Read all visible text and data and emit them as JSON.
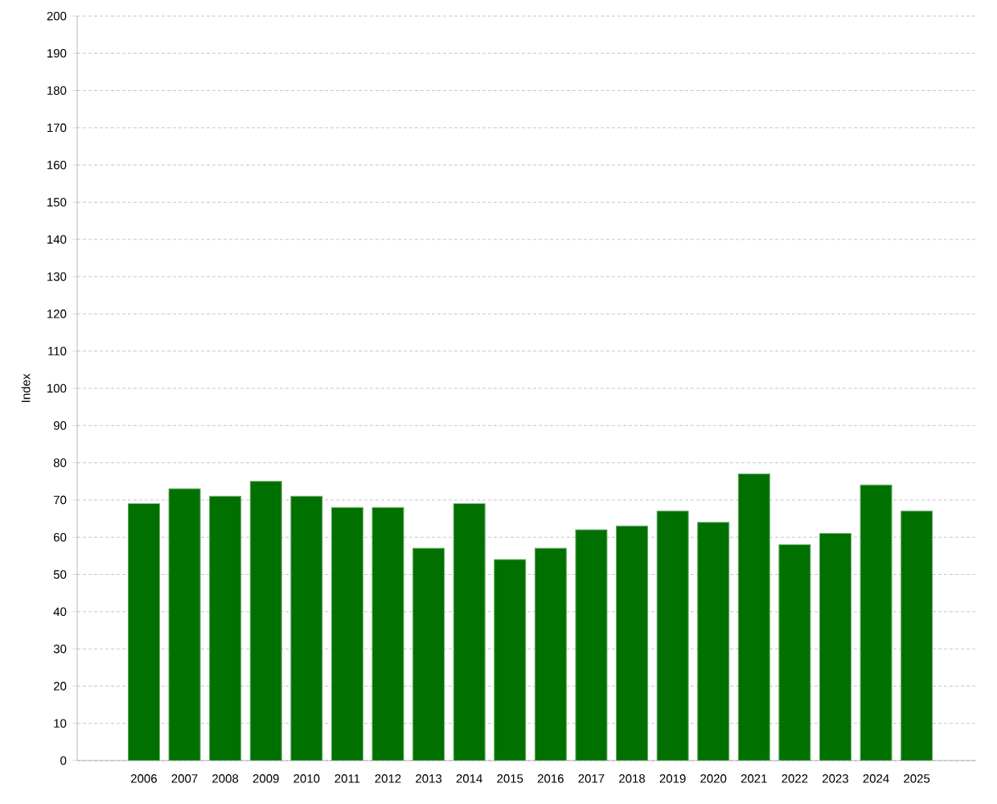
{
  "chart_data": {
    "type": "bar",
    "ylabel": "Index",
    "categories": [
      "2006",
      "2007",
      "2008",
      "2009",
      "2010",
      "2011",
      "2012",
      "2013",
      "2014",
      "2015",
      "2016",
      "2017",
      "2018",
      "2019",
      "2020",
      "2021",
      "2022",
      "2023",
      "2024",
      "2025"
    ],
    "values": [
      69,
      73,
      71,
      75,
      71,
      68,
      68,
      57,
      69,
      54,
      57,
      62,
      63,
      67,
      64,
      77,
      58,
      61,
      74,
      67
    ],
    "color": "#007000",
    "ylim": [
      0,
      200
    ],
    "yticks": [
      0,
      10,
      20,
      30,
      40,
      50,
      60,
      70,
      80,
      90,
      100,
      110,
      120,
      130,
      140,
      150,
      160,
      170,
      180,
      190,
      200
    ],
    "grid": "y"
  }
}
